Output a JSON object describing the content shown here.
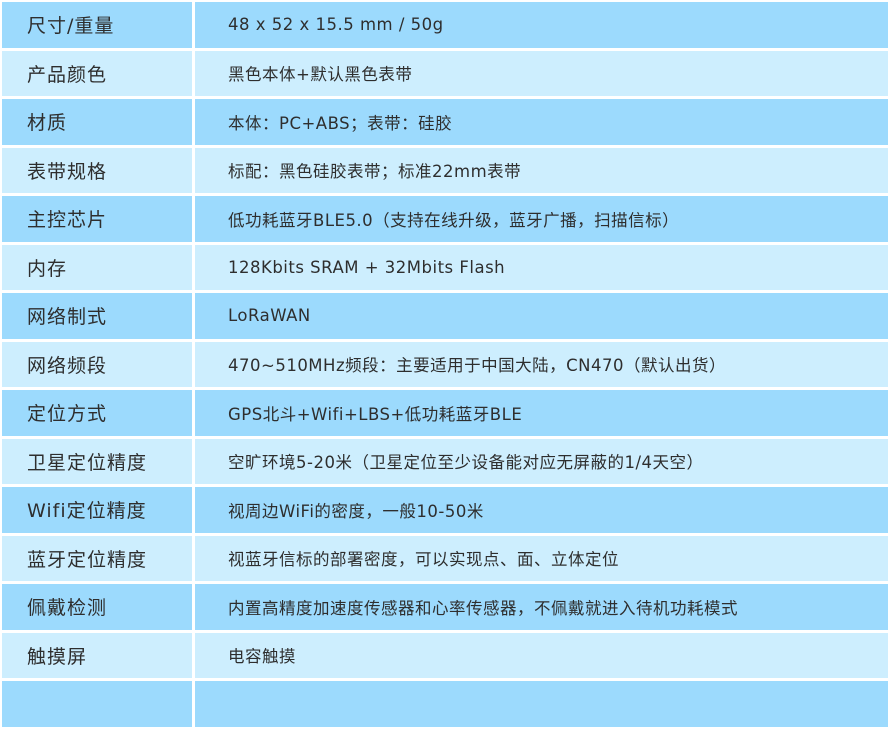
{
  "colors": {
    "row_dark": "#9cdafd",
    "row_light": "#cdeefe",
    "text": "#2e2e2e"
  },
  "rows": [
    {
      "label": "尺寸/重量",
      "value": "48 x 52 x 15.5 mm / 50g"
    },
    {
      "label": "产品颜色",
      "value": "黑色本体+默认黑色表带"
    },
    {
      "label": "材质",
      "value": "本体：PC+ABS；表带：硅胶"
    },
    {
      "label": "表带规格",
      "value": "标配：黑色硅胶表带；标准22mm表带"
    },
    {
      "label": "主控芯片",
      "value": "低功耗蓝牙BLE5.0（支持在线升级，蓝牙广播，扫描信标）"
    },
    {
      "label": "内存",
      "value": "128Kbits SRAM + 32Mbits Flash"
    },
    {
      "label": "网络制式",
      "value": "LoRaWAN"
    },
    {
      "label": "网络频段",
      "value": "470~510MHz频段：主要适用于中国大陆，CN470（默认出货）"
    },
    {
      "label": "定位方式",
      "value": "GPS北斗+Wifi+LBS+低功耗蓝牙BLE"
    },
    {
      "label": "卫星定位精度",
      "value": "空旷环境5-20米（卫星定位至少设备能对应无屏蔽的1/4天空）"
    },
    {
      "label": "Wifi定位精度",
      "value": "视周边WiFi的密度，一般10-50米"
    },
    {
      "label": "蓝牙定位精度",
      "value": "视蓝牙信标的部署密度，可以实现点、面、立体定位"
    },
    {
      "label": "佩戴检测",
      "value": "内置高精度加速度传感器和心率传感器，不佩戴就进入待机功耗模式"
    },
    {
      "label": "触摸屏",
      "value": "电容触摸"
    },
    {
      "label": "",
      "value": ""
    }
  ]
}
